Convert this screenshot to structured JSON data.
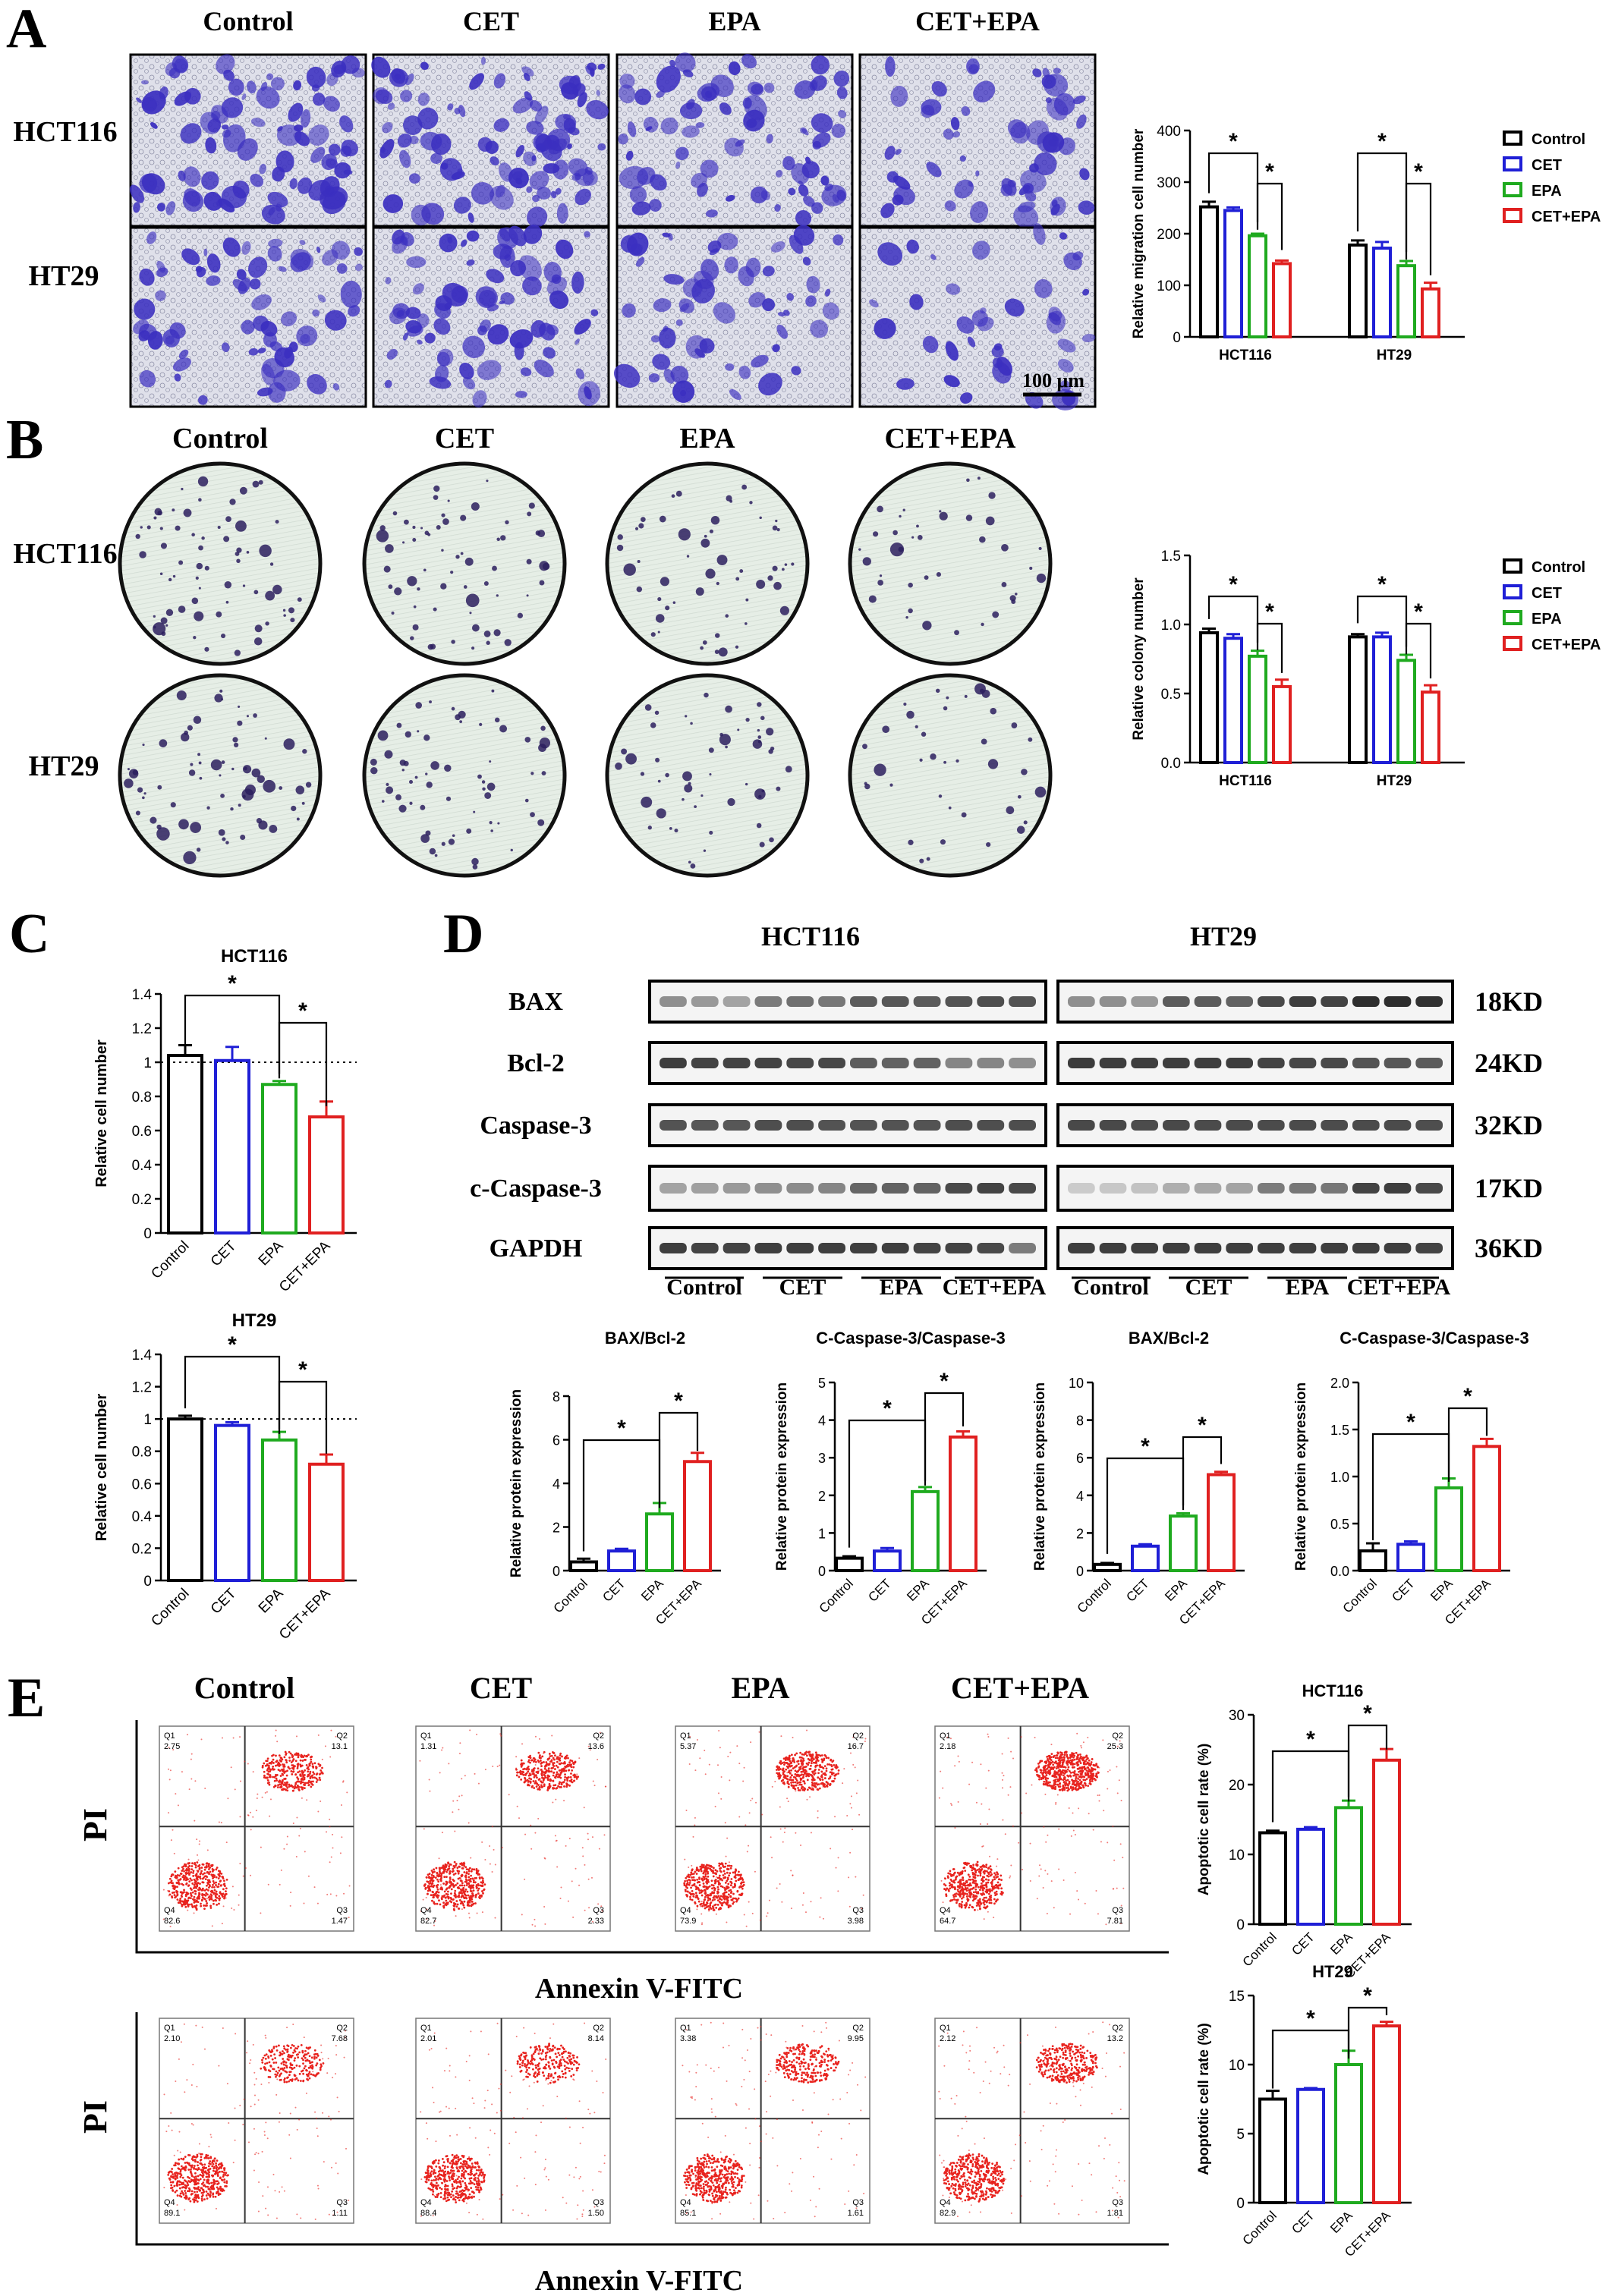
{
  "colors": {
    "control": "#000000",
    "cet": "#1f1fd6",
    "epa": "#1faa1f",
    "cetepa": "#e02020",
    "stain": "#3b2fc0",
    "flow": "#e8231e",
    "plate": "#e3ece4",
    "band": "#2a2a2a"
  },
  "groups": [
    "Control",
    "CET",
    "EPA",
    "CET+EPA"
  ],
  "cell_lines": [
    "HCT116",
    "HT29"
  ],
  "panel_A": {
    "letter": "A",
    "column_labels": [
      "Control",
      "CET",
      "EPA",
      "CET+EPA"
    ],
    "row_labels": [
      "HCT116",
      "HT29"
    ],
    "scale_bar": "100 μm"
  },
  "panel_B": {
    "letter": "B",
    "column_labels": [
      "Control",
      "CET",
      "EPA",
      "CET+EPA"
    ],
    "row_labels": [
      "HCT116",
      "HT29"
    ]
  },
  "panel_C": {
    "letter": "C"
  },
  "panel_D": {
    "letter": "D",
    "cell_lines": [
      "HCT116",
      "HT29"
    ],
    "proteins": [
      "BAX",
      "Bcl-2",
      "Caspase-3",
      "c-Caspase-3",
      "GAPDH"
    ],
    "sizes": [
      "18KD",
      "24KD",
      "32KD",
      "17KD",
      "36KD"
    ],
    "group_labels": [
      "Control",
      "CET",
      "EPA",
      "CET+EPA",
      "Control",
      "CET",
      "EPA",
      "CET+EPA"
    ]
  },
  "panel_E": {
    "letter": "E",
    "column_labels": [
      "Control",
      "CET",
      "EPA",
      "CET+EPA"
    ],
    "y_label": "PI",
    "x_label": "Annexin V-FITC",
    "rows": [
      {
        "cell_line": "HCT116",
        "plots": [
          {
            "q1": "2.75",
            "q2": "13.1",
            "q3": "1.47",
            "q4": "82.6"
          },
          {
            "q1": "1.31",
            "q2": "13.6",
            "q3": "2.33",
            "q4": "82.7"
          },
          {
            "q1": "5.37",
            "q2": "16.7",
            "q3": "3.98",
            "q4": "73.9"
          },
          {
            "q1": "2.18",
            "q2": "25.3",
            "q3": "7.81",
            "q4": "64.7"
          }
        ]
      },
      {
        "cell_line": "HT29",
        "plots": [
          {
            "q1": "2.10",
            "q2": "7.68",
            "q3": "1.11",
            "q4": "89.1"
          },
          {
            "q1": "2.01",
            "q2": "8.14",
            "q3": "1.50",
            "q4": "88.4"
          },
          {
            "q1": "3.38",
            "q2": "9.95",
            "q3": "1.61",
            "q4": "85.1"
          },
          {
            "q1": "2.12",
            "q2": "13.2",
            "q3": "1.81",
            "q4": "82.9"
          }
        ]
      }
    ],
    "quadrant_names": [
      "Q1",
      "Q2",
      "Q3",
      "Q4"
    ]
  },
  "chart_data": [
    {
      "id": "A-migration",
      "type": "bar",
      "categories": [
        "HCT116",
        "HT29"
      ],
      "series": [
        {
          "name": "Control",
          "values": [
            252,
            178
          ],
          "errors": [
            10,
            9
          ]
        },
        {
          "name": "CET",
          "values": [
            245,
            172
          ],
          "errors": [
            6,
            12
          ]
        },
        {
          "name": "EPA",
          "values": [
            196,
            138
          ],
          "errors": [
            4,
            9
          ]
        },
        {
          "name": "CET+EPA",
          "values": [
            142,
            93
          ],
          "errors": [
            6,
            12
          ]
        }
      ],
      "ylabel": "Relative migration cell number",
      "ylim": [
        0,
        400
      ],
      "yticks": [
        0,
        100,
        200,
        300,
        400
      ],
      "legend": "right",
      "significance": "*"
    },
    {
      "id": "B-colony",
      "type": "bar",
      "categories": [
        "HCT116",
        "HT29"
      ],
      "series": [
        {
          "name": "Control",
          "values": [
            0.94,
            0.91
          ],
          "errors": [
            0.03,
            0.02
          ]
        },
        {
          "name": "CET",
          "values": [
            0.9,
            0.91
          ],
          "errors": [
            0.03,
            0.03
          ]
        },
        {
          "name": "EPA",
          "values": [
            0.77,
            0.74
          ],
          "errors": [
            0.04,
            0.04
          ]
        },
        {
          "name": "CET+EPA",
          "values": [
            0.55,
            0.51
          ],
          "errors": [
            0.05,
            0.05
          ]
        }
      ],
      "ylabel": "Relative colony number",
      "ylim": [
        0,
        1.5
      ],
      "yticks": [
        "0.0",
        "0.5",
        "1.0",
        "1.5"
      ],
      "legend": "right",
      "significance": "*"
    },
    {
      "id": "C-HCT116",
      "type": "bar",
      "title": "HCT116",
      "categories": [
        "Control",
        "CET",
        "EPA",
        "CET+EPA"
      ],
      "values": [
        1.04,
        1.01,
        0.87,
        0.68
      ],
      "errors": [
        0.06,
        0.08,
        0.02,
        0.09
      ],
      "ylabel": "Relative cell number",
      "ylim": [
        0,
        1.4
      ],
      "yticks": [
        "0",
        "0.2",
        "0.4",
        "0.6",
        "0.8",
        "1",
        "1.2",
        "1.4"
      ],
      "reference_line": 1,
      "significance": "*"
    },
    {
      "id": "C-HT29",
      "type": "bar",
      "title": "HT29",
      "categories": [
        "Control",
        "CET",
        "EPA",
        "CET+EPA"
      ],
      "values": [
        1.0,
        0.96,
        0.87,
        0.72
      ],
      "errors": [
        0.02,
        0.02,
        0.05,
        0.06
      ],
      "ylabel": "Relative cell number",
      "ylim": [
        0,
        1.4
      ],
      "yticks": [
        "0",
        "0.2",
        "0.4",
        "0.6",
        "0.8",
        "1",
        "1.2",
        "1.4"
      ],
      "reference_line": 1,
      "significance": "*"
    },
    {
      "id": "D-HCT116-BAX",
      "type": "bar",
      "title": "BAX/Bcl-2",
      "categories": [
        "Control",
        "CET",
        "EPA",
        "CET+EPA"
      ],
      "values": [
        0.4,
        0.9,
        2.6,
        5.0
      ],
      "errors": [
        0.15,
        0.1,
        0.5,
        0.4
      ],
      "ylabel": "Relative protein expression",
      "ylim": [
        0,
        8
      ],
      "yticks": [
        "0",
        "2",
        "4",
        "6",
        "8"
      ],
      "significance": "*"
    },
    {
      "id": "D-HCT116-Casp",
      "type": "bar",
      "title": "C-Caspase-3/Caspase-3",
      "categories": [
        "Control",
        "CET",
        "EPA",
        "CET+EPA"
      ],
      "values": [
        0.33,
        0.52,
        2.1,
        3.55
      ],
      "errors": [
        0.05,
        0.08,
        0.12,
        0.15
      ],
      "ylabel": "Relative protein expression",
      "ylim": [
        0,
        5
      ],
      "yticks": [
        "0",
        "1",
        "2",
        "3",
        "4",
        "5"
      ],
      "significance": "*"
    },
    {
      "id": "D-HT29-BAX",
      "type": "bar",
      "title": "BAX/Bcl-2",
      "categories": [
        "Control",
        "CET",
        "EPA",
        "CET+EPA"
      ],
      "values": [
        0.33,
        1.3,
        2.9,
        5.1
      ],
      "errors": [
        0.08,
        0.1,
        0.15,
        0.15
      ],
      "ylabel": "Relative protein expression",
      "ylim": [
        0,
        10
      ],
      "yticks": [
        "0",
        "2",
        "4",
        "6",
        "8",
        "10"
      ],
      "significance": "*"
    },
    {
      "id": "D-HT29-Casp",
      "type": "bar",
      "title": "C-Caspase-3/Caspase-3",
      "categories": [
        "Control",
        "CET",
        "EPA",
        "CET+EPA"
      ],
      "values": [
        0.21,
        0.28,
        0.88,
        1.32
      ],
      "errors": [
        0.08,
        0.03,
        0.1,
        0.08
      ],
      "ylabel": "Relative protein expression",
      "ylim": [
        0,
        2
      ],
      "yticks": [
        "0.0",
        "0.5",
        "1.0",
        "1.5",
        "2.0"
      ],
      "significance": "*"
    },
    {
      "id": "E-HCT116",
      "type": "bar",
      "title": "HCT116",
      "categories": [
        "Control",
        "CET",
        "EPA",
        "CET+EPA"
      ],
      "values": [
        13.1,
        13.6,
        16.7,
        23.5
      ],
      "errors": [
        0.3,
        0.3,
        1.0,
        1.6
      ],
      "ylabel": "Apoptotic cell rate (%)",
      "ylim": [
        0,
        30
      ],
      "yticks": [
        "0",
        "10",
        "20",
        "30"
      ],
      "significance": "*"
    },
    {
      "id": "E-HT29",
      "type": "bar",
      "title": "HT29",
      "categories": [
        "Control",
        "CET",
        "EPA",
        "CET+EPA"
      ],
      "values": [
        7.5,
        8.2,
        10.0,
        12.8
      ],
      "errors": [
        0.6,
        0.1,
        1.0,
        0.3
      ],
      "ylabel": "Apoptotic cell rate (%)",
      "ylim": [
        0,
        15
      ],
      "yticks": [
        "0",
        "5",
        "10",
        "15"
      ],
      "significance": "*"
    }
  ]
}
